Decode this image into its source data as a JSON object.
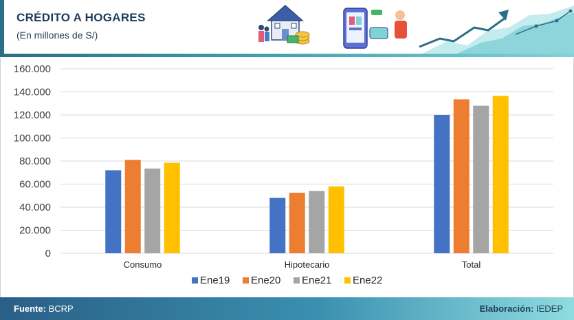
{
  "header": {
    "title": "CRÉDITO A HOGARES",
    "subtitle": "(En millones de S/)"
  },
  "footer": {
    "source_label": "Fuente:",
    "source_value": "BCRP",
    "credit_label": "Elaboración:",
    "credit_value": "IEDEP"
  },
  "colors": {
    "Ene19": "#4472c4",
    "Ene20": "#ed7d31",
    "Ene21": "#a5a5a5",
    "Ene22": "#ffc000",
    "accent": "#2a6f86"
  },
  "chart_data": {
    "type": "bar",
    "title": "",
    "xlabel": "",
    "ylabel": "",
    "categories": [
      "Consumo",
      "Hipotecario",
      "Total"
    ],
    "series": [
      {
        "name": "Ene19",
        "values": [
          72000,
          48000,
          120000
        ]
      },
      {
        "name": "Ene20",
        "values": [
          81000,
          52500,
          133500
        ]
      },
      {
        "name": "Ene21",
        "values": [
          73500,
          54000,
          128000
        ]
      },
      {
        "name": "Ene22",
        "values": [
          78500,
          58000,
          136500
        ]
      }
    ],
    "ylim": [
      0,
      160000
    ],
    "yticks": [
      0,
      20000,
      40000,
      60000,
      80000,
      100000,
      120000,
      140000,
      160000
    ],
    "ytick_labels": [
      "0",
      "20.000",
      "40.000",
      "60.000",
      "80.000",
      "100.000",
      "120.000",
      "140.000",
      "160.000"
    ],
    "grid": true,
    "legend_position": "bottom"
  }
}
